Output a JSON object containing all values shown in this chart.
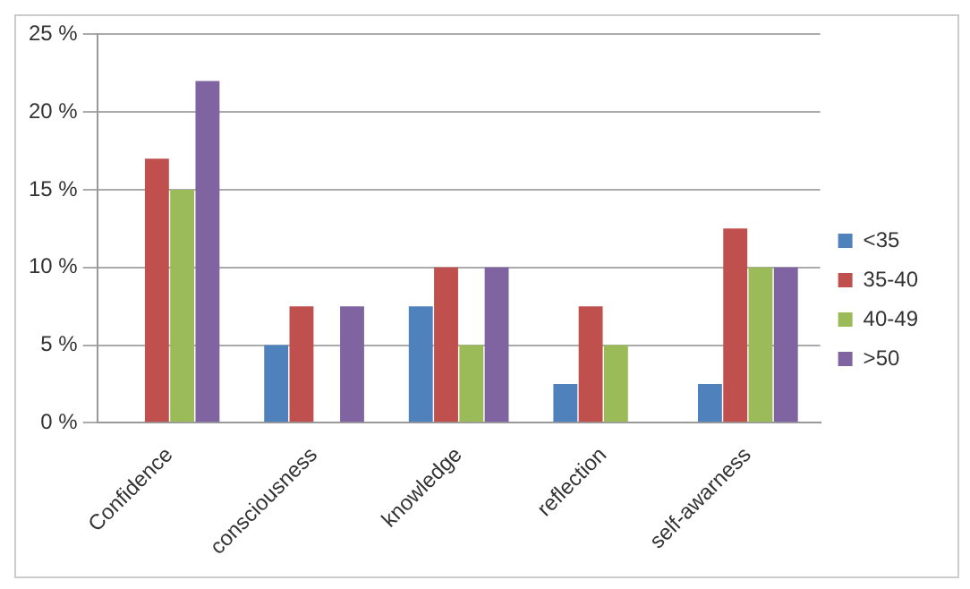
{
  "chart_data": {
    "type": "bar",
    "categories": [
      "Confidence",
      "consciousness",
      "knowledge",
      "reflection",
      "self-awarness"
    ],
    "series": [
      {
        "name": "<35",
        "color": "#4f81bd",
        "values": [
          0,
          5,
          7.5,
          2.5,
          2.5
        ]
      },
      {
        "name": "35-40",
        "color": "#c0504d",
        "values": [
          17,
          7.5,
          10,
          7.5,
          12.5
        ]
      },
      {
        "name": "40-49",
        "color": "#9bbb59",
        "values": [
          15,
          0,
          5,
          5,
          10
        ]
      },
      {
        "name": ">50",
        "color": "#8064a2",
        "values": [
          22,
          7.5,
          10,
          0,
          10
        ]
      }
    ],
    "ylim": [
      0,
      25
    ],
    "yticks": [
      {
        "value": 0,
        "label": "0 %"
      },
      {
        "value": 5,
        "label": "5 %"
      },
      {
        "value": 10,
        "label": "10 %"
      },
      {
        "value": 15,
        "label": "15 %"
      },
      {
        "value": 20,
        "label": "20 %"
      },
      {
        "value": 25,
        "label": "25 %"
      }
    ],
    "grid": "y",
    "legend": "right"
  }
}
